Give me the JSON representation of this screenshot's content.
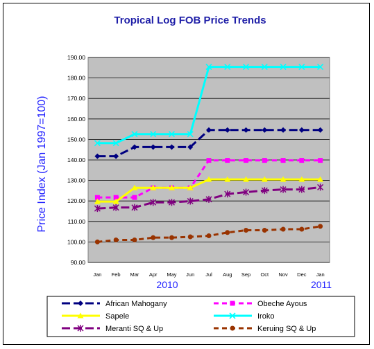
{
  "chart_data": {
    "type": "line",
    "title": "Tropical Log FOB Price Trends",
    "ylabel": "Price Index (Jan 1997=100)",
    "categories": [
      "Jan",
      "Feb",
      "Mar",
      "Apr",
      "May",
      "Jun",
      "Jul",
      "Aug",
      "Sep",
      "Oct",
      "Nov",
      "Dec",
      "Jan"
    ],
    "year_labels": [
      "2010",
      "2011"
    ],
    "ylim": [
      90,
      190
    ],
    "yticks": [
      "90.00",
      "100.00",
      "110.00",
      "120.00",
      "130.00",
      "140.00",
      "150.00",
      "160.00",
      "170.00",
      "180.00",
      "190.00"
    ],
    "grid": true,
    "legend_position": "bottom",
    "series": [
      {
        "name": "African Mahogany",
        "color": "#000080",
        "marker": "diamond",
        "dash": "long-dash",
        "values": [
          141.8,
          141.8,
          146.3,
          146.3,
          146.3,
          146.3,
          154.6,
          154.6,
          154.6,
          154.6,
          154.6,
          154.6,
          154.6
        ]
      },
      {
        "name": "Obeche Ayous",
        "color": "#ff00ff",
        "marker": "square",
        "dash": "dash",
        "values": [
          121.7,
          121.7,
          121.7,
          126.4,
          126.4,
          126.4,
          139.8,
          139.8,
          139.8,
          139.8,
          139.8,
          139.8,
          139.8
        ]
      },
      {
        "name": "Sapele",
        "color": "#ffff00",
        "marker": "triangle",
        "dash": "solid",
        "values": [
          119.7,
          119.7,
          126.4,
          126.4,
          126.4,
          126.4,
          130.5,
          130.5,
          130.5,
          130.5,
          130.5,
          130.5,
          130.5
        ]
      },
      {
        "name": "Iroko",
        "color": "#00ffff",
        "marker": "x",
        "dash": "solid",
        "values": [
          148.2,
          148.2,
          152.6,
          152.6,
          152.6,
          152.6,
          185.4,
          185.4,
          185.4,
          185.4,
          185.4,
          185.4,
          185.4
        ]
      },
      {
        "name": "Meranti SQ & Up",
        "color": "#800080",
        "marker": "star",
        "dash": "long-dash",
        "values": [
          116.3,
          116.8,
          116.8,
          119.3,
          119.3,
          119.9,
          120.8,
          123.4,
          124.3,
          125.1,
          125.6,
          125.6,
          126.7
        ]
      },
      {
        "name": "Keruing SQ & Up",
        "color": "#993300",
        "marker": "circle",
        "dash": "dash",
        "values": [
          100.0,
          101.0,
          101.0,
          102.1,
          102.1,
          102.5,
          103.0,
          104.6,
          105.7,
          105.7,
          106.2,
          106.2,
          107.6
        ]
      }
    ]
  }
}
